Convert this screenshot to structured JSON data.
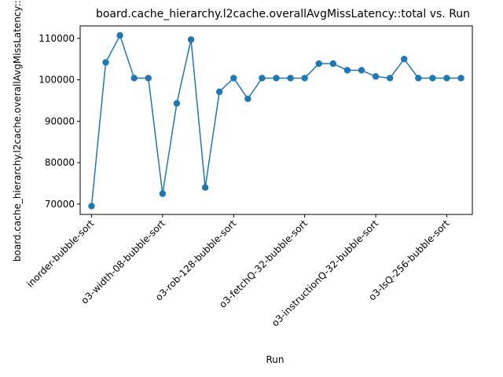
{
  "chart_data": {
    "type": "line",
    "title": "board.cache_hierarchy.l2cache.overallAvgMissLatency::total vs. Run",
    "xlabel": "Run",
    "ylabel": "board.cache_hierarchy.l2cache.overallAvgMissLatency::total",
    "ylim": [
      67500,
      113000
    ],
    "yticks": [
      70000,
      80000,
      90000,
      100000,
      110000
    ],
    "grid": false,
    "legend": "none",
    "line_color": "#1f77b4",
    "marker": "circle",
    "x_tick_labels": [
      {
        "index": 0,
        "label": "inorder-bubble-sort"
      },
      {
        "index": 5,
        "label": "o3-width-08-bubble-sort"
      },
      {
        "index": 10,
        "label": "o3-rob-128-bubble-sort"
      },
      {
        "index": 15,
        "label": "o3-fetchQ-32-bubble-sort"
      },
      {
        "index": 20,
        "label": "o3-instructionQ-32-bubble-sort"
      },
      {
        "index": 25,
        "label": "o3-lsQ-256-bubble-sort"
      }
    ],
    "values": [
      69500,
      104200,
      110700,
      100400,
      100400,
      72500,
      94300,
      109700,
      74000,
      97100,
      100400,
      95400,
      100400,
      100400,
      100400,
      100400,
      103900,
      103900,
      102300,
      102300,
      100800,
      100400,
      105000,
      100400,
      100400,
      100400,
      100400
    ]
  }
}
